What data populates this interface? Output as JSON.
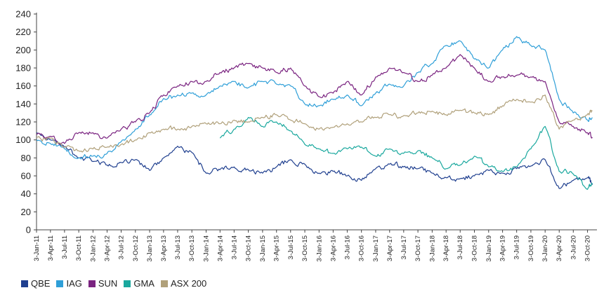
{
  "chart_data": {
    "type": "line",
    "title": "",
    "xlabel": "",
    "ylabel": "",
    "ylim": [
      0,
      240
    ],
    "yticks": [
      0,
      20,
      40,
      60,
      80,
      100,
      120,
      140,
      160,
      180,
      200,
      220,
      240
    ],
    "grid": false,
    "legend_position": "bottom-left",
    "x_tick_labels": [
      "3-Jan-11",
      "3-Apr-11",
      "3-Jul-11",
      "3-Oct-11",
      "3-Jan-12",
      "3-Apr-12",
      "3-Jul-12",
      "3-Oct-12",
      "3-Jan-13",
      "3-Apr-13",
      "3-Jul-13",
      "3-Oct-13",
      "3-Jan-14",
      "3-Apr-14",
      "3-Jul-14",
      "3-Oct-14",
      "3-Jan-15",
      "3-Apr-15",
      "3-Jul-15",
      "3-Oct-15",
      "3-Jan-16",
      "3-Apr-16",
      "3-Jul-16",
      "3-Oct-16",
      "3-Jan-17",
      "3-Apr-17",
      "3-Jul-17",
      "3-Oct-17",
      "3-Jan-18",
      "3-Apr-18",
      "3-Jul-18",
      "3-Oct-18",
      "3-Jan-19",
      "3-Apr-19",
      "3-Jul-19",
      "3-Oct-19",
      "3-Jan-20",
      "3-Apr-20",
      "3-Jul-20",
      "3-Oct-20"
    ],
    "series": [
      {
        "name": "QBE",
        "color": "#1f3f8f",
        "x": [
          "3-Jan-11",
          "3-Apr-11",
          "3-Jul-11",
          "3-Oct-11",
          "3-Jan-12",
          "3-Apr-12",
          "3-Jul-12",
          "3-Oct-12",
          "3-Jan-13",
          "3-Apr-13",
          "3-Jul-13",
          "3-Oct-13",
          "3-Jan-14",
          "3-Apr-14",
          "3-Jul-14",
          "3-Oct-14",
          "3-Jan-15",
          "3-Apr-15",
          "3-Jul-15",
          "3-Oct-15",
          "3-Jan-16",
          "3-Apr-16",
          "3-Jul-16",
          "3-Oct-16",
          "3-Jan-17",
          "3-Apr-17",
          "3-Jul-17",
          "3-Oct-17",
          "3-Jan-18",
          "3-Apr-18",
          "3-Jul-18",
          "3-Oct-18",
          "3-Jan-19",
          "3-Apr-19",
          "3-Jul-19",
          "3-Oct-19",
          "3-Jan-20",
          "3-Apr-20",
          "3-Jul-20",
          "3-Oct-20",
          "3-Nov-20"
        ],
        "values": [
          108,
          100,
          92,
          80,
          76,
          72,
          75,
          78,
          66,
          80,
          93,
          86,
          63,
          67,
          70,
          67,
          63,
          70,
          78,
          73,
          63,
          65,
          60,
          55,
          68,
          73,
          70,
          68,
          63,
          58,
          57,
          60,
          66,
          63,
          68,
          71,
          78,
          46,
          55,
          58,
          50
        ]
      },
      {
        "name": "IAG",
        "color": "#2f9fd8",
        "x": [
          "3-Jan-11",
          "3-Apr-11",
          "3-Jul-11",
          "3-Oct-11",
          "3-Jan-12",
          "3-Apr-12",
          "3-Jul-12",
          "3-Oct-12",
          "3-Jan-13",
          "3-Apr-13",
          "3-Jul-13",
          "3-Oct-13",
          "3-Jan-14",
          "3-Apr-14",
          "3-Jul-14",
          "3-Oct-14",
          "3-Jan-15",
          "3-Apr-15",
          "3-Jul-15",
          "3-Oct-15",
          "3-Jan-16",
          "3-Apr-16",
          "3-Jul-16",
          "3-Oct-16",
          "3-Jan-17",
          "3-Apr-17",
          "3-Jul-17",
          "3-Oct-17",
          "3-Jan-18",
          "3-Apr-18",
          "3-Jul-18",
          "3-Oct-18",
          "3-Jan-19",
          "3-Apr-19",
          "3-Jul-19",
          "3-Oct-19",
          "3-Jan-20",
          "3-Apr-20",
          "3-Jul-20",
          "3-Oct-20",
          "3-Nov-20"
        ],
        "values": [
          100,
          96,
          90,
          80,
          82,
          85,
          98,
          112,
          128,
          146,
          150,
          152,
          150,
          160,
          165,
          158,
          165,
          162,
          160,
          140,
          138,
          145,
          150,
          138,
          152,
          162,
          160,
          175,
          185,
          205,
          210,
          190,
          180,
          200,
          215,
          205,
          200,
          145,
          130,
          122,
          125
        ]
      },
      {
        "name": "SUN",
        "color": "#7a2380",
        "x": [
          "3-Jan-11",
          "3-Apr-11",
          "3-Jul-11",
          "3-Oct-11",
          "3-Jan-12",
          "3-Apr-12",
          "3-Jul-12",
          "3-Oct-12",
          "3-Jan-13",
          "3-Apr-13",
          "3-Jul-13",
          "3-Oct-13",
          "3-Jan-14",
          "3-Apr-14",
          "3-Jul-14",
          "3-Oct-14",
          "3-Jan-15",
          "3-Apr-15",
          "3-Jul-15",
          "3-Oct-15",
          "3-Jan-16",
          "3-Apr-16",
          "3-Jul-16",
          "3-Oct-16",
          "3-Jan-17",
          "3-Apr-17",
          "3-Jul-17",
          "3-Oct-17",
          "3-Jan-18",
          "3-Apr-18",
          "3-Jul-18",
          "3-Oct-18",
          "3-Jan-19",
          "3-Apr-19",
          "3-Jul-19",
          "3-Oct-19",
          "3-Jan-20",
          "3-Apr-20",
          "3-Jul-20",
          "3-Oct-20",
          "3-Nov-20"
        ],
        "values": [
          106,
          104,
          96,
          108,
          108,
          102,
          112,
          120,
          130,
          150,
          160,
          165,
          165,
          175,
          180,
          185,
          180,
          175,
          180,
          160,
          148,
          152,
          165,
          150,
          170,
          180,
          175,
          165,
          172,
          180,
          195,
          180,
          165,
          170,
          172,
          170,
          165,
          120,
          115,
          108,
          102
        ]
      },
      {
        "name": "GMA",
        "color": "#1aa89e",
        "x": [
          "3-Apr-14",
          "3-Jul-14",
          "3-Oct-14",
          "3-Jan-15",
          "3-Apr-15",
          "3-Jul-15",
          "3-Oct-15",
          "3-Jan-16",
          "3-Apr-16",
          "3-Jul-16",
          "3-Oct-16",
          "3-Jan-17",
          "3-Apr-17",
          "3-Jul-17",
          "3-Oct-17",
          "3-Jan-18",
          "3-Apr-18",
          "3-Jul-18",
          "3-Oct-18",
          "3-Jan-19",
          "3-Apr-19",
          "3-Jul-19",
          "3-Oct-19",
          "3-Jan-20",
          "3-Apr-20",
          "3-Jul-20",
          "3-Oct-20",
          "3-Nov-20"
        ],
        "values": [
          102,
          112,
          125,
          115,
          120,
          110,
          95,
          90,
          85,
          90,
          92,
          82,
          90,
          85,
          88,
          80,
          68,
          72,
          82,
          70,
          65,
          70,
          90,
          115,
          65,
          62,
          45,
          52
        ]
      },
      {
        "name": "ASX 200",
        "color": "#b0a07a",
        "x": [
          "3-Jan-11",
          "3-Apr-11",
          "3-Jul-11",
          "3-Oct-11",
          "3-Jan-12",
          "3-Apr-12",
          "3-Jul-12",
          "3-Oct-12",
          "3-Jan-13",
          "3-Apr-13",
          "3-Jul-13",
          "3-Oct-13",
          "3-Jan-14",
          "3-Apr-14",
          "3-Jul-14",
          "3-Oct-14",
          "3-Jan-15",
          "3-Apr-15",
          "3-Jul-15",
          "3-Oct-15",
          "3-Jan-16",
          "3-Apr-16",
          "3-Jul-16",
          "3-Oct-16",
          "3-Jan-17",
          "3-Apr-17",
          "3-Jul-17",
          "3-Oct-17",
          "3-Jan-18",
          "3-Apr-18",
          "3-Jul-18",
          "3-Oct-18",
          "3-Jan-19",
          "3-Apr-19",
          "3-Jul-19",
          "3-Oct-19",
          "3-Jan-20",
          "3-Apr-20",
          "3-Jul-20",
          "3-Oct-20",
          "3-Nov-20"
        ],
        "values": [
          103,
          102,
          92,
          88,
          90,
          92,
          95,
          100,
          108,
          112,
          112,
          115,
          118,
          118,
          122,
          120,
          125,
          128,
          122,
          118,
          112,
          114,
          118,
          120,
          125,
          128,
          127,
          130,
          132,
          128,
          133,
          130,
          128,
          138,
          145,
          142,
          150,
          112,
          122,
          128,
          132
        ]
      }
    ]
  }
}
